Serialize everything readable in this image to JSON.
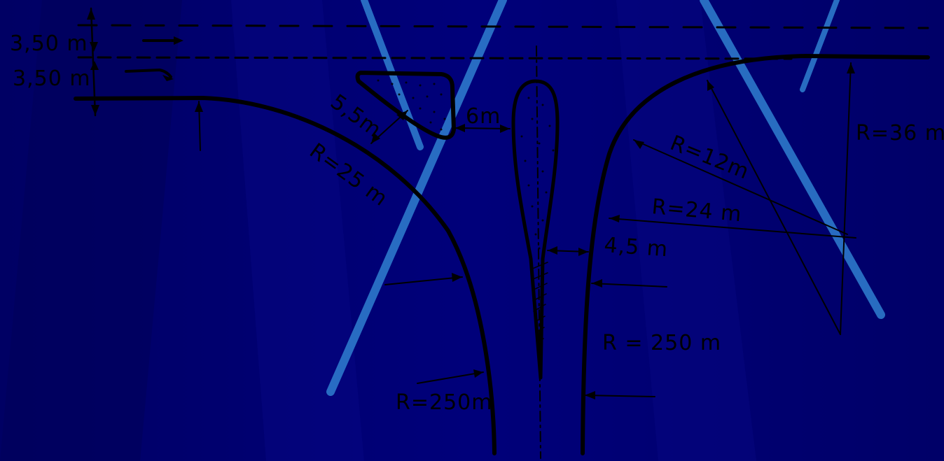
{
  "colors": {
    "background": "#00006e",
    "light_streak": "#2f7fd0",
    "ink": "#000000"
  },
  "labels": {
    "lane_width_top": "3,50 m",
    "lane_width_bottom": "3,50 m",
    "island_offset": "5,5m",
    "island_gap": "6m",
    "radius_left_entry": "R=25 m",
    "radius_left_far": "R=250m",
    "radius_right_small": "R=12m",
    "radius_right_mid": "R=24 m",
    "radius_right_large": "R=36 m",
    "radius_right_far": "R = 250 m",
    "median_gap": "4,5 m"
  }
}
